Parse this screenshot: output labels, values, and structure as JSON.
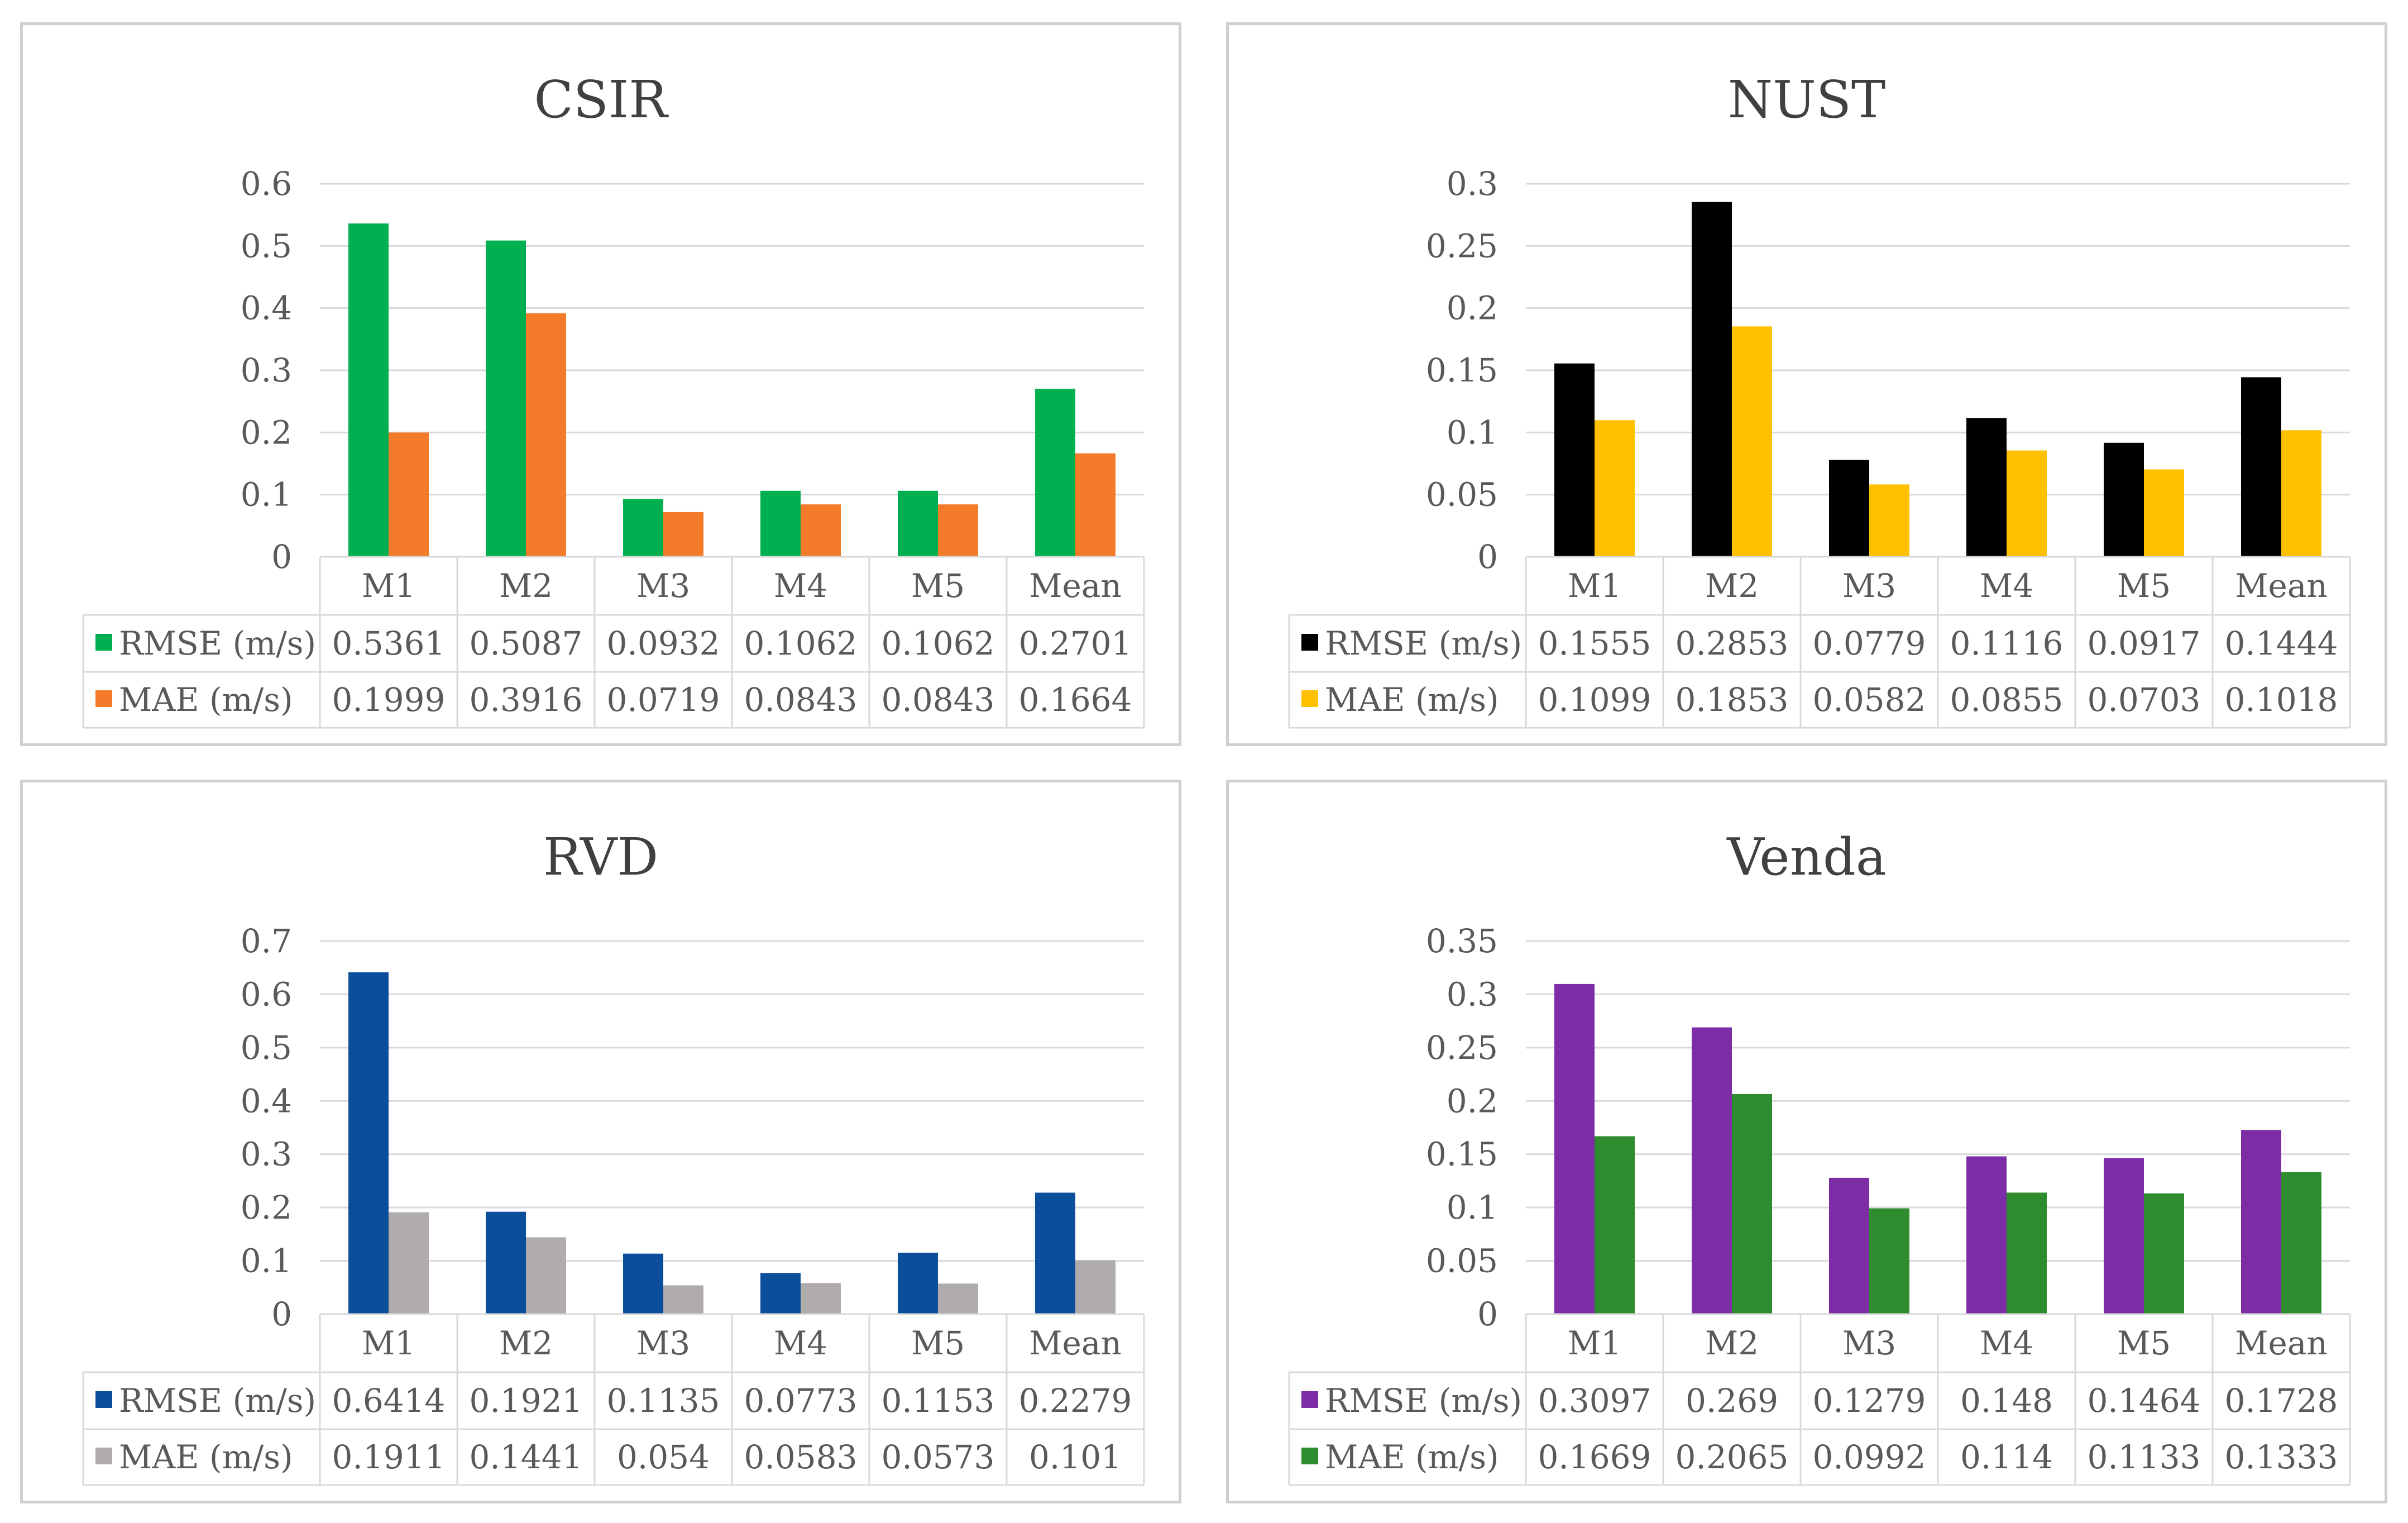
{
  "chart_data": [
    {
      "type": "bar",
      "title": "CSIR",
      "categories": [
        "M1",
        "M2",
        "M3",
        "M4",
        "M5",
        "Mean"
      ],
      "yticks": [
        "0",
        "0.1",
        "0.2",
        "0.3",
        "0.4",
        "0.5",
        "0.6"
      ],
      "ylim": [
        0,
        0.6
      ],
      "series": [
        {
          "name": "RMSE (m/s)",
          "color": "#00b050",
          "values": [
            0.5361,
            0.5087,
            0.0932,
            0.1062,
            0.1062,
            0.2701
          ],
          "labels": [
            "0.5361",
            "0.5087",
            "0.0932",
            "0.1062",
            "0.1062",
            "0.2701"
          ]
        },
        {
          "name": "MAE (m/s)",
          "color": "#f47b2a",
          "values": [
            0.1999,
            0.3916,
            0.0719,
            0.0843,
            0.0843,
            0.1664
          ],
          "labels": [
            "0.1999",
            "0.3916",
            "0.0719",
            "0.0843",
            "0.0843",
            "0.1664"
          ]
        }
      ]
    },
    {
      "type": "bar",
      "title": "NUST",
      "categories": [
        "M1",
        "M2",
        "M3",
        "M4",
        "M5",
        "Mean"
      ],
      "yticks": [
        "0",
        "0.05",
        "0.1",
        "0.15",
        "0.2",
        "0.25",
        "0.3"
      ],
      "ylim": [
        0,
        0.3
      ],
      "series": [
        {
          "name": "RMSE (m/s)",
          "color": "#000000",
          "values": [
            0.1555,
            0.2853,
            0.0779,
            0.1116,
            0.0917,
            0.1444
          ],
          "labels": [
            "0.1555",
            "0.2853",
            "0.0779",
            "0.1116",
            "0.0917",
            "0.1444"
          ]
        },
        {
          "name": "MAE (m/s)",
          "color": "#ffc000",
          "values": [
            0.1099,
            0.1853,
            0.0582,
            0.0855,
            0.0703,
            0.1018
          ],
          "labels": [
            "0.1099",
            "0.1853",
            "0.0582",
            "0.0855",
            "0.0703",
            "0.1018"
          ]
        }
      ]
    },
    {
      "type": "bar",
      "title": "RVD",
      "categories": [
        "M1",
        "M2",
        "M3",
        "M4",
        "M5",
        "Mean"
      ],
      "yticks": [
        "0",
        "0.1",
        "0.2",
        "0.3",
        "0.4",
        "0.5",
        "0.6",
        "0.7"
      ],
      "ylim": [
        0,
        0.7
      ],
      "series": [
        {
          "name": "RMSE (m/s)",
          "color": "#0b4f9c",
          "values": [
            0.6414,
            0.1921,
            0.1135,
            0.0773,
            0.1153,
            0.2279
          ],
          "labels": [
            "0.6414",
            "0.1921",
            "0.1135",
            "0.0773",
            "0.1153",
            "0.2279"
          ]
        },
        {
          "name": "MAE (m/s)",
          "color": "#b0acab",
          "values": [
            0.1911,
            0.1441,
            0.054,
            0.0583,
            0.0573,
            0.101
          ],
          "labels": [
            "0.1911",
            "0.1441",
            "0.054",
            "0.0583",
            "0.0573",
            "0.101"
          ]
        }
      ]
    },
    {
      "type": "bar",
      "title": "Venda",
      "categories": [
        "M1",
        "M2",
        "M3",
        "M4",
        "M5",
        "Mean"
      ],
      "yticks": [
        "0",
        "0.05",
        "0.1",
        "0.15",
        "0.2",
        "0.25",
        "0.3",
        "0.35"
      ],
      "ylim": [
        0,
        0.35
      ],
      "series": [
        {
          "name": "RMSE (m/s)",
          "color": "#7c2da6",
          "values": [
            0.3097,
            0.269,
            0.1279,
            0.148,
            0.1464,
            0.1728
          ],
          "labels": [
            "0.3097",
            "0.269",
            "0.1279",
            "0.148",
            "0.1464",
            "0.1728"
          ]
        },
        {
          "name": "MAE (m/s)",
          "color": "#2e8b2e",
          "values": [
            0.1669,
            0.2065,
            0.0992,
            0.114,
            0.1133,
            0.1333
          ],
          "labels": [
            "0.1669",
            "0.2065",
            "0.0992",
            "0.114",
            "0.1133",
            "0.1333"
          ]
        }
      ]
    }
  ]
}
